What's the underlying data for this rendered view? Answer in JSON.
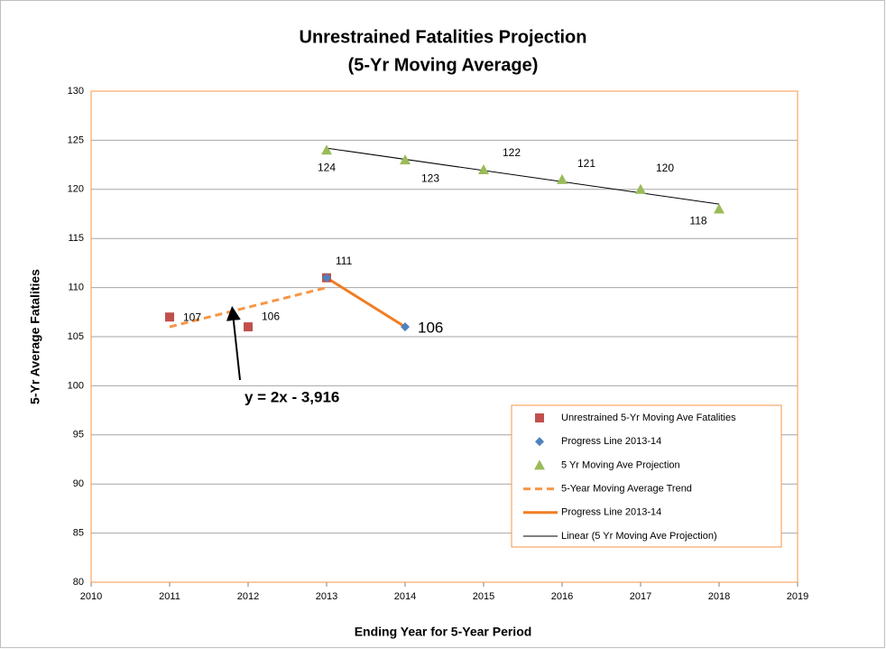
{
  "chart_data": {
    "type": "scatter",
    "title": "Unrestrained Fatalities Projection",
    "subtitle": "(5-Yr Moving Average)",
    "x_label": "Ending Year for 5-Year Period",
    "y_label": "5-Yr Average Fatalities",
    "annotation": "y = 2x - 3,916",
    "xlim": [
      2010,
      2019
    ],
    "xticks": [
      2010,
      2011,
      2012,
      2013,
      2014,
      2015,
      2016,
      2017,
      2018,
      2019
    ],
    "ylim": [
      80,
      130
    ],
    "yticks": [
      80,
      85,
      90,
      95,
      100,
      105,
      110,
      115,
      120,
      125,
      130
    ],
    "grid": true,
    "legend": "lower right",
    "series": [
      {
        "name": "Unrestrained 5-Yr Moving Ave Fatalities",
        "color": "#c0504d",
        "marker": "square",
        "line": "none",
        "x": [
          2011,
          2012,
          2013
        ],
        "values": [
          107,
          106,
          111
        ]
      },
      {
        "name": "Progress Line 2013-14",
        "color": "#4f81bd",
        "marker": "diamond",
        "line": "none",
        "x": [
          2013,
          2014
        ],
        "values": [
          111,
          106
        ]
      },
      {
        "name": "5 Yr Moving Ave Projection",
        "color": "#9bbb59",
        "marker": "triangle",
        "line": "none",
        "x": [
          2013,
          2014,
          2015,
          2016,
          2017,
          2018
        ],
        "values": [
          124,
          123,
          122,
          121,
          120,
          118
        ]
      },
      {
        "name": "5-Year Moving Average Trend",
        "color": "#f79646",
        "marker": "none",
        "line": "dashed",
        "x": [
          2011,
          2013
        ],
        "values": [
          106,
          110
        ]
      },
      {
        "name": "Progress Line 2013-14",
        "color": "#f07d22",
        "marker": "none",
        "line": "solid",
        "x": [
          2013,
          2014
        ],
        "values": [
          111,
          106
        ]
      },
      {
        "name": "Linear (5 Yr Moving Ave Projection)",
        "color": "#000000",
        "marker": "none",
        "line": "thin",
        "x": [
          2013,
          2018
        ],
        "values": [
          124.2,
          118.5
        ]
      }
    ]
  }
}
